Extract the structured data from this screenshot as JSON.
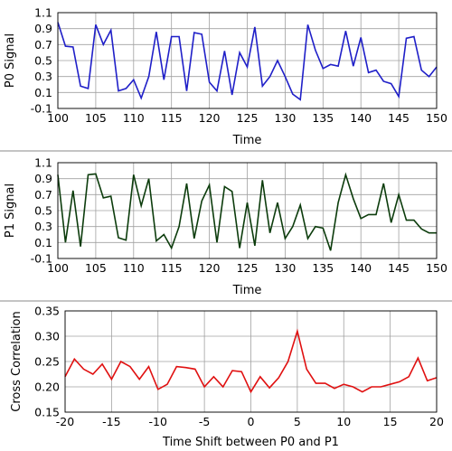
{
  "chart_data": [
    {
      "type": "line",
      "xlabel": "Time",
      "ylabel": "P0 Signal",
      "xlim": [
        100,
        150
      ],
      "ylim": [
        -0.1,
        1.1
      ],
      "xticks": [
        "100",
        "105",
        "110",
        "115",
        "120",
        "125",
        "130",
        "135",
        "140",
        "145",
        "150"
      ],
      "yticks": [
        "-0.1",
        "0.1",
        "0.3",
        "0.5",
        "0.7",
        "0.9",
        "1.1"
      ],
      "grid": true,
      "series": [
        {
          "color": "#1f1fc8",
          "x": [
            100,
            101,
            102,
            103,
            104,
            105,
            106,
            107,
            108,
            109,
            110,
            111,
            112,
            113,
            114,
            115,
            116,
            117,
            118,
            119,
            120,
            121,
            122,
            123,
            124,
            125,
            126,
            127,
            128,
            129,
            130,
            131,
            132,
            133,
            134,
            135,
            136,
            137,
            138,
            139,
            140,
            141,
            142,
            143,
            144,
            145,
            146,
            147,
            148,
            149,
            150
          ],
          "y": [
            0.98,
            0.68,
            0.67,
            0.18,
            0.15,
            0.95,
            0.7,
            0.88,
            0.12,
            0.15,
            0.26,
            0.03,
            0.3,
            0.86,
            0.26,
            0.8,
            0.8,
            0.12,
            0.85,
            0.83,
            0.23,
            0.12,
            0.62,
            0.07,
            0.6,
            0.42,
            0.92,
            0.18,
            0.3,
            0.5,
            0.3,
            0.08,
            0.01,
            0.95,
            0.63,
            0.4,
            0.45,
            0.43,
            0.87,
            0.43,
            0.79,
            0.35,
            0.38,
            0.24,
            0.21,
            0.05,
            0.78,
            0.8,
            0.38,
            0.3,
            0.42
          ]
        }
      ]
    },
    {
      "type": "line",
      "xlabel": "Time",
      "ylabel": "P1 Signal",
      "xlim": [
        100,
        150
      ],
      "ylim": [
        -0.1,
        1.1
      ],
      "xticks": [
        "100",
        "105",
        "110",
        "115",
        "120",
        "125",
        "130",
        "135",
        "140",
        "145",
        "150"
      ],
      "yticks": [
        "-0.1",
        "0.1",
        "0.3",
        "0.5",
        "0.7",
        "0.9",
        "1.1"
      ],
      "grid": true,
      "series": [
        {
          "color": "#0c3c0c",
          "x": [
            100,
            101,
            102,
            103,
            104,
            105,
            106,
            107,
            108,
            109,
            110,
            111,
            112,
            113,
            114,
            115,
            116,
            117,
            118,
            119,
            120,
            121,
            122,
            123,
            124,
            125,
            126,
            127,
            128,
            129,
            130,
            131,
            132,
            133,
            134,
            135,
            136,
            137,
            138,
            139,
            140,
            141,
            142,
            143,
            144,
            145,
            146,
            147,
            148,
            149,
            150
          ],
          "y": [
            0.95,
            0.1,
            0.75,
            0.05,
            0.95,
            0.96,
            0.66,
            0.68,
            0.16,
            0.13,
            0.95,
            0.56,
            0.9,
            0.12,
            0.2,
            0.03,
            0.3,
            0.84,
            0.15,
            0.62,
            0.82,
            0.1,
            0.8,
            0.74,
            0.03,
            0.6,
            0.06,
            0.88,
            0.22,
            0.6,
            0.15,
            0.3,
            0.57,
            0.15,
            0.3,
            0.28,
            0.0,
            0.6,
            0.95,
            0.65,
            0.4,
            0.45,
            0.45,
            0.84,
            0.35,
            0.7,
            0.38,
            0.38,
            0.27,
            0.22,
            0.22
          ]
        }
      ]
    },
    {
      "type": "line",
      "xlabel": "Time Shift between P0 and P1",
      "ylabel": "Cross Correlation",
      "xlim": [
        -20,
        20
      ],
      "ylim": [
        0.15,
        0.35
      ],
      "xticks": [
        "-20",
        "-15",
        "-10",
        "-5",
        "0",
        "5",
        "10",
        "15",
        "20"
      ],
      "yticks": [
        "0.15",
        "0.20",
        "0.25",
        "0.30",
        "0.35"
      ],
      "grid": true,
      "series": [
        {
          "color": "#e01010",
          "x": [
            -20,
            -19,
            -18,
            -17,
            -16,
            -15,
            -14,
            -13,
            -12,
            -11,
            -10,
            -9,
            -8,
            -7,
            -6,
            -5,
            -4,
            -3,
            -2,
            -1,
            0,
            1,
            2,
            3,
            4,
            5,
            6,
            7,
            8,
            9,
            10,
            11,
            12,
            13,
            14,
            15,
            16,
            17,
            18,
            19,
            20
          ],
          "y": [
            0.22,
            0.255,
            0.235,
            0.225,
            0.245,
            0.215,
            0.25,
            0.24,
            0.215,
            0.24,
            0.195,
            0.205,
            0.24,
            0.238,
            0.235,
            0.2,
            0.22,
            0.2,
            0.232,
            0.23,
            0.19,
            0.22,
            0.198,
            0.218,
            0.25,
            0.31,
            0.235,
            0.207,
            0.207,
            0.197,
            0.205,
            0.2,
            0.19,
            0.2,
            0.2,
            0.205,
            0.21,
            0.22,
            0.257,
            0.212,
            0.218
          ]
        }
      ]
    }
  ]
}
